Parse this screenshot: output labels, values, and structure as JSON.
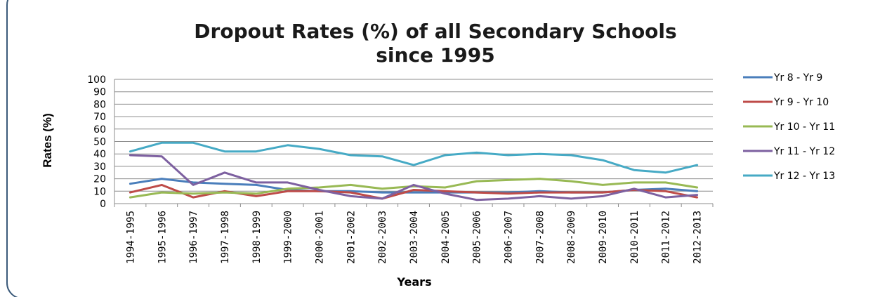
{
  "chart_data": {
    "type": "line",
    "title_lines": [
      "Dropout Rates (%) of all Secondary Schools",
      "since 1995"
    ],
    "xlabel": "Years",
    "ylabel": "Rates (%)",
    "ylim": [
      0,
      100
    ],
    "yticks": [
      0,
      10,
      20,
      30,
      40,
      50,
      60,
      70,
      80,
      90,
      100
    ],
    "grid": true,
    "legend_position": "right",
    "categories": [
      "1994-1995",
      "1995-1996",
      "1996-1997",
      "1997-1998",
      "1998-1999",
      "1999-2000",
      "2000-2001",
      "2001-2002",
      "2002-2003",
      "2003-2004",
      "2004-2005",
      "2005-2006",
      "2006-2007",
      "2007-2008",
      "2008-2009",
      "2009-2010",
      "2010-2011",
      "2011-2012",
      "2012-2013"
    ],
    "series": [
      {
        "name": "Yr 8 - Yr 9",
        "color": "#4a7ebb",
        "values": [
          16,
          20,
          17,
          16,
          15,
          11,
          10,
          10,
          9,
          9,
          9,
          9,
          9,
          10,
          9,
          9,
          11,
          12,
          10
        ]
      },
      {
        "name": "Yr 9 - Yr 10",
        "color": "#be4b48",
        "values": [
          9,
          15,
          5,
          10,
          6,
          10,
          10,
          9,
          4,
          11,
          10,
          9,
          8,
          9,
          9,
          9,
          11,
          10,
          5
        ]
      },
      {
        "name": "Yr 10 - Yr 11",
        "color": "#98b954",
        "values": [
          5,
          9,
          8,
          9,
          8,
          12,
          13,
          15,
          12,
          14,
          13,
          18,
          19,
          20,
          18,
          15,
          17,
          17,
          13
        ]
      },
      {
        "name": "Yr 11 - Yr 12",
        "color": "#7d60a0",
        "values": [
          39,
          38,
          15,
          25,
          17,
          17,
          11,
          6,
          4,
          15,
          8,
          3,
          4,
          6,
          4,
          6,
          12,
          5,
          7
        ]
      },
      {
        "name": "Yr 12 - Yr 13",
        "color": "#46aac5",
        "values": [
          42,
          49,
          49,
          42,
          42,
          47,
          44,
          39,
          38,
          31,
          39,
          41,
          39,
          40,
          39,
          35,
          27,
          25,
          31
        ]
      }
    ]
  }
}
